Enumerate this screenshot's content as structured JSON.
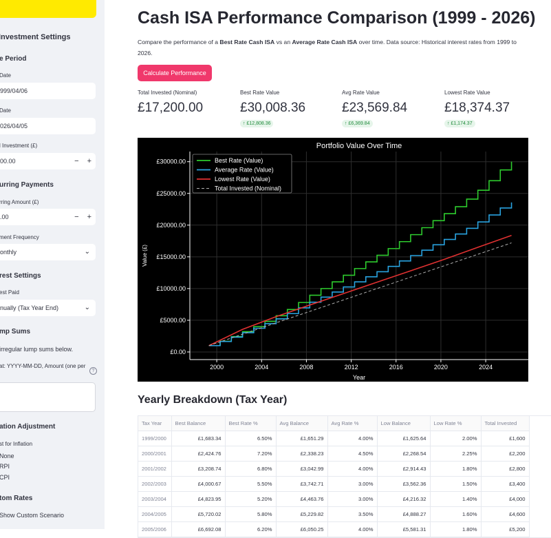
{
  "sidebar": {
    "section_investment": "Investment Settings",
    "section_period": "e Period",
    "start_date_label": "Date",
    "start_date_value": "999/04/06",
    "end_date_label": "Date",
    "end_date_value": "026/04/05",
    "initial_label": "l Investment (£)",
    "initial_value": "00.00",
    "section_recurring": "urring Payments",
    "recurring_amount_label": "rring Amount (£)",
    "recurring_amount_value": ".00",
    "frequency_label": "ment Frequency",
    "frequency_value": "onthly",
    "section_interest": "rest Settings",
    "interest_paid_label": "est Paid",
    "interest_paid_value": "nually (Tax Year End)",
    "section_lumps": "mp Sums",
    "lumps_text": "irregular lump sums below.",
    "lumps_format_label": "at: YYYY-MM-DD, Amount (one per",
    "section_inflation": "ation Adjustment",
    "inflation_label": "st for Inflation",
    "inflation_options": [
      "None",
      "RPI",
      "CPI"
    ],
    "section_custom": "tom Rates",
    "custom_checkbox_label": "Show Custom Scenario",
    "stepper_minus": "−",
    "stepper_plus": "+",
    "chevron": "⌄"
  },
  "main": {
    "title": "Cash ISA Performance Comparison (1999 - 2026)",
    "desc_pre": "Compare the performance of a ",
    "desc_best": "Best Rate Cash ISA",
    "desc_mid": " vs an ",
    "desc_avg": "Average Rate Cash ISA",
    "desc_post": " over time. Data source: Historical interest rates from 1999 to 2026.",
    "calc_button": "Calculate Performance",
    "metrics": [
      {
        "label": "Total Invested (Nominal)",
        "value": "£17,200.00",
        "delta": ""
      },
      {
        "label": "Best Rate Value",
        "value": "£30,008.36",
        "delta": "↑ £12,808.36"
      },
      {
        "label": "Avg Rate Value",
        "value": "£23,569.84",
        "delta": "↑ £6,369.84"
      },
      {
        "label": "Lowest Rate Value",
        "value": "£18,374.37",
        "delta": "↑ £1,174.37"
      }
    ],
    "breakdown_title": "Yearly Breakdown (Tax Year)",
    "table": {
      "headers": [
        "Tax Year",
        "Best Balance",
        "Best Rate %",
        "Avg Balance",
        "Avg Rate %",
        "Low Balance",
        "Low Rate %",
        "Total Invested"
      ],
      "rows": [
        [
          "1999/2000",
          "£1,683.34",
          "6.50%",
          "£1,651.29",
          "4.00%",
          "£1,625.64",
          "2.00%",
          "£1,600"
        ],
        [
          "2000/2001",
          "£2,424.76",
          "7.20%",
          "£2,338.23",
          "4.50%",
          "£2,268.54",
          "2.25%",
          "£2,200"
        ],
        [
          "2001/2002",
          "£3,208.74",
          "6.80%",
          "£3,042.99",
          "4.00%",
          "£2,914.43",
          "1.80%",
          "£2,800"
        ],
        [
          "2002/2003",
          "£4,000.67",
          "5.50%",
          "£3,742.71",
          "3.00%",
          "£3,562.36",
          "1.50%",
          "£3,400"
        ],
        [
          "2003/2004",
          "£4,823.95",
          "5.20%",
          "£4,463.76",
          "3.00%",
          "£4,216.32",
          "1.40%",
          "£4,000"
        ],
        [
          "2004/2005",
          "£5,720.02",
          "5.80%",
          "£5,229.82",
          "3.50%",
          "£4,888.27",
          "1.60%",
          "£4,600"
        ],
        [
          "2005/2006",
          "£6,692.08",
          "6.20%",
          "£6,050.25",
          "4.00%",
          "£5,581.31",
          "1.80%",
          "£5,200"
        ]
      ]
    }
  },
  "chart_data": {
    "type": "line",
    "title": "Portfolio Value Over Time",
    "xlabel": "Year",
    "ylabel": "Value (£)",
    "xlim": [
      1997.6,
      2027.8
    ],
    "ylim": [
      -1200,
      31600
    ],
    "xticks": [
      2000,
      2004,
      2008,
      2012,
      2016,
      2020,
      2024
    ],
    "yticks": [
      0,
      5000,
      10000,
      15000,
      20000,
      25000,
      30000
    ],
    "ytick_labels": [
      "£0.00",
      "£5000.00",
      "£10000.00",
      "£15000.00",
      "£20000.00",
      "£25000.00",
      "£30000.00"
    ],
    "grid": true,
    "legend_position": "top-left",
    "background": "#000000",
    "series": [
      {
        "name": "Best Rate (Value)",
        "color": "#2ecc2e",
        "style": "step",
        "x": [
          1999.3,
          2000.3,
          2001.3,
          2002.3,
          2003.3,
          2004.3,
          2005.3,
          2006.3,
          2007.3,
          2008.3,
          2009.3,
          2010.3,
          2011.3,
          2012.3,
          2013.3,
          2014.3,
          2015.3,
          2016.3,
          2017.3,
          2018.3,
          2019.3,
          2020.3,
          2021.3,
          2022.3,
          2023.3,
          2024.3,
          2025.3,
          2026.3
        ],
        "y": [
          1000,
          1683,
          2425,
          3209,
          4001,
          4824,
          5720,
          6692,
          7800,
          8950,
          10000,
          11050,
          12100,
          13150,
          14200,
          15250,
          16300,
          17400,
          18500,
          19600,
          20700,
          21800,
          22900,
          24100,
          25500,
          27000,
          28700,
          30008
        ]
      },
      {
        "name": "Average Rate (Value)",
        "color": "#29a3e0",
        "style": "step",
        "x": [
          1999.3,
          2000.3,
          2001.3,
          2002.3,
          2003.3,
          2004.3,
          2005.3,
          2006.3,
          2007.3,
          2008.3,
          2009.3,
          2010.3,
          2011.3,
          2012.3,
          2013.3,
          2014.3,
          2015.3,
          2016.3,
          2017.3,
          2018.3,
          2019.3,
          2020.3,
          2021.3,
          2022.3,
          2023.3,
          2024.3,
          2025.3,
          2026.3
        ],
        "y": [
          1000,
          1651,
          2338,
          3043,
          3743,
          4464,
          5230,
          6050,
          6950,
          7850,
          8650,
          9450,
          10250,
          11050,
          11850,
          12650,
          13500,
          14350,
          15200,
          16050,
          16900,
          17750,
          18600,
          19500,
          20500,
          21600,
          22700,
          23570
        ]
      },
      {
        "name": "Lowest Rate (Value)",
        "color": "#e03131",
        "style": "line",
        "x": [
          1999.3,
          2002.3,
          2005.3,
          2008.3,
          2011.3,
          2014.3,
          2017.3,
          2020.3,
          2023.3,
          2026.3
        ],
        "y": [
          1000,
          3562,
          5581,
          7400,
          9200,
          11000,
          12800,
          14600,
          16500,
          18374
        ]
      },
      {
        "name": "Total Invested (Nominal)",
        "color": "#b0b0b0",
        "style": "dashed",
        "x": [
          1999.3,
          2026.3
        ],
        "y": [
          1000,
          17200
        ]
      }
    ]
  }
}
